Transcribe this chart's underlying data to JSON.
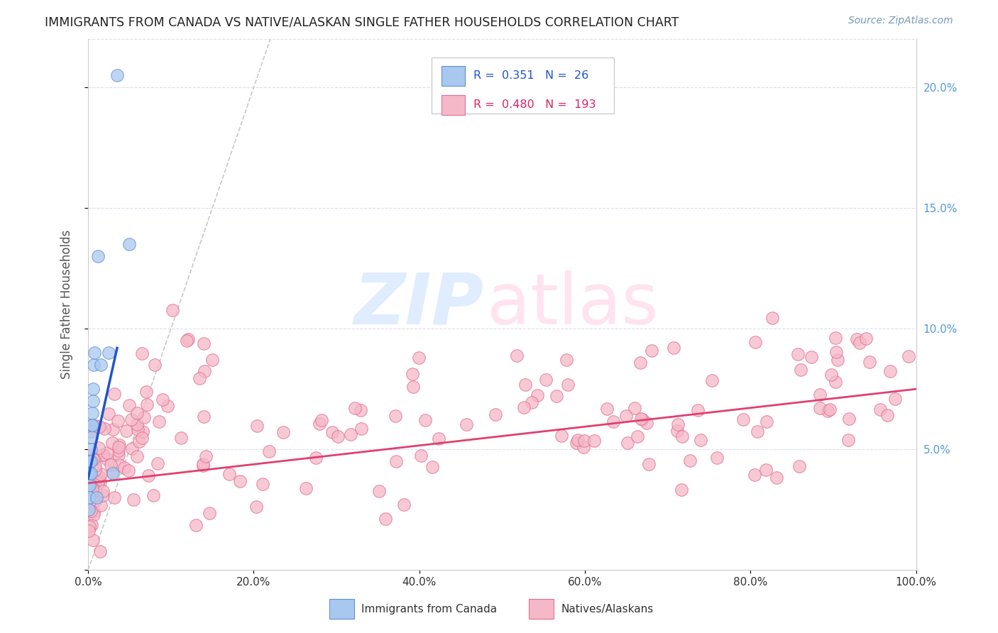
{
  "title": "IMMIGRANTS FROM CANADA VS NATIVE/ALASKAN SINGLE FATHER HOUSEHOLDS CORRELATION CHART",
  "source": "Source: ZipAtlas.com",
  "ylabel_label": "Single Father Households",
  "xlim": [
    0.0,
    1.0
  ],
  "ylim": [
    0.0,
    0.22
  ],
  "blue_R": "0.351",
  "blue_N": "26",
  "pink_R": "0.480",
  "pink_N": "193",
  "blue_color": "#A8C8F0",
  "pink_color": "#F5B8C8",
  "blue_edge": "#6090D0",
  "pink_edge": "#E07090",
  "blue_scatter": [
    [
      0.001,
      0.04
    ],
    [
      0.001,
      0.035
    ],
    [
      0.001,
      0.03
    ],
    [
      0.001,
      0.025
    ],
    [
      0.002,
      0.045
    ],
    [
      0.002,
      0.04
    ],
    [
      0.002,
      0.035
    ],
    [
      0.002,
      0.03
    ],
    [
      0.003,
      0.05
    ],
    [
      0.003,
      0.045
    ],
    [
      0.003,
      0.04
    ],
    [
      0.004,
      0.06
    ],
    [
      0.004,
      0.055
    ],
    [
      0.005,
      0.065
    ],
    [
      0.005,
      0.06
    ],
    [
      0.006,
      0.075
    ],
    [
      0.006,
      0.07
    ],
    [
      0.007,
      0.085
    ],
    [
      0.008,
      0.09
    ],
    [
      0.012,
      0.13
    ],
    [
      0.015,
      0.085
    ],
    [
      0.025,
      0.09
    ],
    [
      0.03,
      0.04
    ],
    [
      0.035,
      0.205
    ],
    [
      0.05,
      0.135
    ],
    [
      0.01,
      0.03
    ]
  ],
  "pink_scatter_seed": 42,
  "watermark_zip_color": "#C8DEFF",
  "watermark_atlas_color": "#FFCCE0",
  "diagonal_color": "#BBBBBB",
  "blue_line_x": [
    0.0,
    0.035
  ],
  "blue_line_y": [
    0.038,
    0.092
  ],
  "pink_line_x": [
    0.0,
    1.0
  ],
  "pink_line_y": [
    0.036,
    0.075
  ],
  "blue_line_color": "#2255CC",
  "pink_line_color": "#E04070",
  "grid_color": "#DDDDEE",
  "tick_color_blue": "#5599DD",
  "right_yticks": [
    0.05,
    0.1,
    0.15,
    0.2
  ],
  "right_ytick_labels": [
    "5.0%",
    "10.0%",
    "15.0%",
    "20.0%"
  ],
  "xticks": [
    0.0,
    0.2,
    0.4,
    0.6,
    0.8,
    1.0
  ],
  "xtick_labels": [
    "0.0%",
    "20.0%",
    "40.0%",
    "60.0%",
    "80.0%",
    "100.0%"
  ]
}
